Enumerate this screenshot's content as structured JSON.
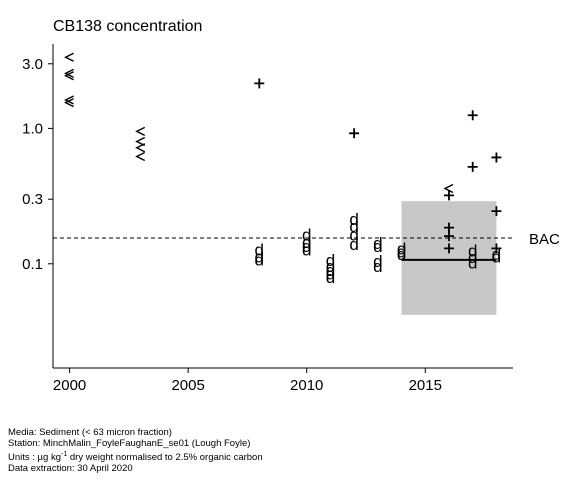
{
  "chart_data": {
    "type": "scatter",
    "title": "CB138 concentration",
    "x_ticks": [
      2000,
      2005,
      2010,
      2015
    ],
    "y_ticks": [
      {
        "value": 3.0,
        "label": "3.0"
      },
      {
        "value": 1.0,
        "label": "1.0"
      },
      {
        "value": 0.3,
        "label": "0.3"
      },
      {
        "value": 0.1,
        "label": "0.1"
      }
    ],
    "y_scale": "log",
    "xlim": [
      1999.3,
      2018.7
    ],
    "ylim": [
      0.017,
      4.2
    ],
    "bac": {
      "label": "BAC",
      "value": 0.155
    },
    "assessment_box": {
      "x0": 2014.0,
      "x1": 2018.0,
      "y0": 0.042,
      "y1": 0.29
    },
    "trend_line": {
      "x0": 2014.0,
      "x1": 2018.0,
      "y": 0.107
    },
    "markers": [
      {
        "year": 2000,
        "value": 3.35,
        "symbol": "<"
      },
      {
        "year": 2000,
        "value": 2.55,
        "symbol": "<"
      },
      {
        "year": 2000,
        "value": 2.45,
        "symbol": "<"
      },
      {
        "year": 2000,
        "value": 1.62,
        "symbol": "<"
      },
      {
        "year": 2000,
        "value": 1.55,
        "symbol": "<"
      },
      {
        "year": 2003,
        "value": 0.95,
        "symbol": "<"
      },
      {
        "year": 2003,
        "value": 0.8,
        "symbol": "<"
      },
      {
        "year": 2003,
        "value": 0.72,
        "symbol": "<"
      },
      {
        "year": 2003,
        "value": 0.62,
        "symbol": "<"
      },
      {
        "year": 2008,
        "value": 2.15,
        "symbol": "+"
      },
      {
        "year": 2008,
        "value": 0.128,
        "symbol": "d"
      },
      {
        "year": 2008,
        "value": 0.113,
        "symbol": "d"
      },
      {
        "year": 2008,
        "value": 0.108,
        "symbol": "d"
      },
      {
        "year": 2010,
        "value": 0.165,
        "symbol": "d"
      },
      {
        "year": 2010,
        "value": 0.145,
        "symbol": "d"
      },
      {
        "year": 2010,
        "value": 0.135,
        "symbol": "d"
      },
      {
        "year": 2010,
        "value": 0.128,
        "symbol": "d"
      },
      {
        "year": 2011,
        "value": 0.107,
        "symbol": "d"
      },
      {
        "year": 2011,
        "value": 0.096,
        "symbol": "d"
      },
      {
        "year": 2011,
        "value": 0.09,
        "symbol": "d"
      },
      {
        "year": 2011,
        "value": 0.085,
        "symbol": "d"
      },
      {
        "year": 2011,
        "value": 0.08,
        "symbol": "d"
      },
      {
        "year": 2012,
        "value": 0.92,
        "symbol": "+"
      },
      {
        "year": 2012,
        "value": 0.215,
        "symbol": "d"
      },
      {
        "year": 2012,
        "value": 0.19,
        "symbol": "d"
      },
      {
        "year": 2012,
        "value": 0.165,
        "symbol": "d"
      },
      {
        "year": 2012,
        "value": 0.14,
        "symbol": "d"
      },
      {
        "year": 2013,
        "value": 0.142,
        "symbol": "d"
      },
      {
        "year": 2013,
        "value": 0.135,
        "symbol": "d"
      },
      {
        "year": 2013,
        "value": 0.105,
        "symbol": "d"
      },
      {
        "year": 2013,
        "value": 0.096,
        "symbol": "d"
      },
      {
        "year": 2014,
        "value": 0.13,
        "symbol": "d"
      },
      {
        "year": 2014,
        "value": 0.123,
        "symbol": "d"
      },
      {
        "year": 2014,
        "value": 0.118,
        "symbol": "d"
      },
      {
        "year": 2016,
        "value": 0.36,
        "symbol": "<"
      },
      {
        "year": 2016,
        "value": 0.32,
        "symbol": "+"
      },
      {
        "year": 2016,
        "value": 0.185,
        "symbol": "+"
      },
      {
        "year": 2016,
        "value": 0.16,
        "symbol": "+"
      },
      {
        "year": 2016,
        "value": 0.13,
        "symbol": "+"
      },
      {
        "year": 2017,
        "value": 1.25,
        "symbol": "+"
      },
      {
        "year": 2017,
        "value": 0.52,
        "symbol": "+"
      },
      {
        "year": 2017,
        "value": 0.125,
        "symbol": "d"
      },
      {
        "year": 2017,
        "value": 0.112,
        "symbol": "d"
      },
      {
        "year": 2017,
        "value": 0.102,
        "symbol": "d"
      },
      {
        "year": 2018,
        "value": 0.61,
        "symbol": "+"
      },
      {
        "year": 2018,
        "value": 0.245,
        "symbol": "+"
      },
      {
        "year": 2018,
        "value": 0.13,
        "symbol": "+"
      },
      {
        "year": 2018,
        "value": 0.118,
        "symbol": "d"
      },
      {
        "year": 2018,
        "value": 0.113,
        "symbol": "d"
      }
    ]
  },
  "footer": {
    "media": "Media: Sediment (< 63 micron fraction)",
    "station": "Station: MinchMalin_FoyleFaughanE_se01 (Lough Foyle)",
    "units_prefix": "Units : µg kg",
    "units_sup": "-1",
    "units_suffix": " dry weight normalised to 2.5% organic carbon",
    "extraction": "Data extraction: 30 April 2020"
  },
  "colors": {
    "box": "#c8c8c8",
    "axis": "#000000"
  }
}
